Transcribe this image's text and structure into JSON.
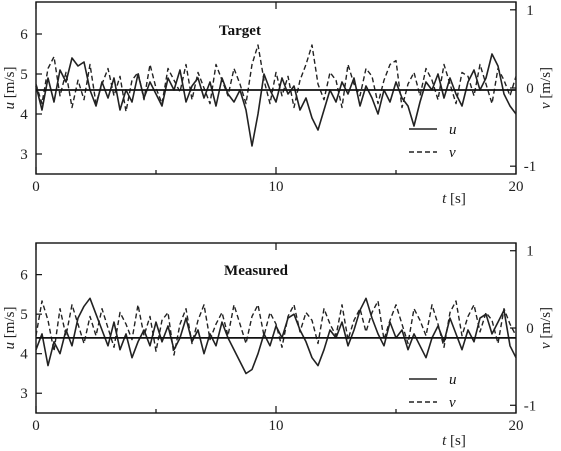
{
  "chart_data": [
    {
      "type": "line",
      "title": "Target",
      "xlabel_var": "t",
      "xlabel_unit": " [s]",
      "ylabel_var": "u",
      "ylabel_unit": " [m/s]",
      "y2label_var": "v",
      "y2label_unit": " [m/s]",
      "xlim": [
        0,
        20
      ],
      "ylim": [
        2.5,
        6.8
      ],
      "y2lim": [
        -1.1,
        1.1
      ],
      "xticks": [
        0,
        10,
        20
      ],
      "yticks": [
        3,
        4,
        5,
        6
      ],
      "y2ticks": [
        -1,
        0,
        1
      ],
      "xtick_labels": [
        "0",
        "10",
        "20"
      ],
      "ytick_labels": [
        "3",
        "4",
        "5",
        "6"
      ],
      "y2tick_labels": [
        "-1",
        "0",
        "1"
      ],
      "reference_line": {
        "axis": "y",
        "value": 4.6
      },
      "legend": {
        "position": "bottom-right",
        "entries": [
          "u",
          "v"
        ]
      },
      "series": [
        {
          "name": "u",
          "style": "solid",
          "axis": "left",
          "x": [
            0,
            0.25,
            0.5,
            0.75,
            1,
            1.25,
            1.5,
            1.75,
            2,
            2.25,
            2.5,
            2.75,
            3,
            3.25,
            3.5,
            3.75,
            4,
            4.25,
            4.5,
            4.75,
            5,
            5.25,
            5.5,
            5.75,
            6,
            6.25,
            6.5,
            6.75,
            7,
            7.25,
            7.5,
            7.75,
            8,
            8.25,
            8.5,
            8.75,
            9,
            9.25,
            9.5,
            9.75,
            10,
            10.25,
            10.5,
            10.75,
            11,
            11.25,
            11.5,
            11.75,
            12,
            12.25,
            12.5,
            12.75,
            13,
            13.25,
            13.5,
            13.75,
            14,
            14.25,
            14.5,
            14.75,
            15,
            15.25,
            15.5,
            15.75,
            16,
            16.25,
            16.5,
            16.75,
            17,
            17.25,
            17.5,
            17.75,
            18,
            18.25,
            18.5,
            18.75,
            19,
            19.25,
            19.5,
            19.75,
            20
          ],
          "values": [
            4.7,
            4.1,
            4.9,
            4.3,
            5.1,
            4.8,
            5.4,
            5.2,
            5.3,
            4.6,
            4.2,
            4.8,
            4.4,
            4.9,
            4.1,
            4.6,
            4.3,
            5.0,
            4.4,
            4.8,
            4.5,
            4.2,
            4.9,
            4.6,
            5.1,
            4.3,
            4.7,
            4.9,
            4.4,
            4.8,
            4.2,
            4.9,
            4.5,
            4.3,
            4.6,
            4.1,
            3.2,
            4.0,
            5.0,
            4.6,
            4.3,
            4.9,
            4.5,
            4.7,
            4.1,
            4.4,
            3.9,
            3.6,
            4.1,
            4.6,
            4.3,
            4.8,
            4.5,
            4.9,
            4.2,
            4.7,
            4.4,
            4.0,
            4.6,
            4.3,
            4.8,
            4.4,
            4.2,
            3.7,
            4.3,
            4.8,
            4.6,
            5.0,
            4.4,
            4.9,
            4.5,
            4.2,
            4.8,
            5.1,
            4.6,
            4.9,
            5.5,
            5.2,
            4.5,
            4.2,
            4.0
          ]
        },
        {
          "name": "v",
          "style": "dashed",
          "axis": "right",
          "x": [
            0,
            0.25,
            0.5,
            0.75,
            1,
            1.25,
            1.5,
            1.75,
            2,
            2.25,
            2.5,
            2.75,
            3,
            3.25,
            3.5,
            3.75,
            4,
            4.25,
            4.5,
            4.75,
            5,
            5.25,
            5.5,
            5.75,
            6,
            6.25,
            6.5,
            6.75,
            7,
            7.25,
            7.5,
            7.75,
            8,
            8.25,
            8.5,
            8.75,
            9,
            9.25,
            9.5,
            9.75,
            10,
            10.25,
            10.5,
            10.75,
            11,
            11.25,
            11.5,
            11.75,
            12,
            12.25,
            12.5,
            12.75,
            13,
            13.25,
            13.5,
            13.75,
            14,
            14.25,
            14.5,
            14.75,
            15,
            15.25,
            15.5,
            15.75,
            16,
            16.25,
            16.5,
            16.75,
            17,
            17.25,
            17.5,
            17.75,
            18,
            18.25,
            18.5,
            18.75,
            19,
            19.25,
            19.5,
            19.75,
            20
          ],
          "values": [
            0.05,
            -0.2,
            0.25,
            0.4,
            -0.1,
            0.2,
            -0.25,
            0.1,
            -0.15,
            0.3,
            -0.2,
            0.05,
            0.25,
            -0.1,
            0.15,
            -0.3,
            0.1,
            0.2,
            -0.15,
            0.3,
            0.0,
            -0.2,
            0.25,
            0.1,
            -0.05,
            0.3,
            -0.15,
            0.2,
            0.0,
            -0.2,
            0.3,
            0.1,
            -0.1,
            0.25,
            0.05,
            -0.2,
            0.3,
            0.55,
            0.1,
            -0.2,
            0.2,
            -0.1,
            0.15,
            -0.25,
            0.1,
            0.3,
            0.55,
            0.05,
            -0.15,
            0.2,
            0.1,
            -0.25,
            0.3,
            0.05,
            -0.1,
            0.25,
            0.15,
            -0.2,
            0.1,
            0.3,
            0.35,
            -0.25,
            0.05,
            0.2,
            -0.1,
            0.25,
            0.1,
            -0.15,
            0.3,
            0.05,
            -0.2,
            0.2,
            0.15,
            -0.1,
            0.3,
            0.05,
            -0.2,
            0.25,
            0.1,
            -0.1,
            0.15
          ]
        }
      ]
    },
    {
      "type": "line",
      "title": "Measured",
      "xlabel_var": "t",
      "xlabel_unit": " [s]",
      "ylabel_var": "u",
      "ylabel_unit": " [m/s]",
      "y2label_var": "v",
      "y2label_unit": " [m/s]",
      "xlim": [
        0,
        20
      ],
      "ylim": [
        2.5,
        6.8
      ],
      "y2lim": [
        -1.1,
        1.1
      ],
      "xticks": [
        0,
        10,
        20
      ],
      "yticks": [
        3,
        4,
        5,
        6
      ],
      "y2ticks": [
        -1,
        0,
        1
      ],
      "xtick_labels": [
        "0",
        "10",
        "20"
      ],
      "ytick_labels": [
        "3",
        "4",
        "5",
        "6"
      ],
      "y2tick_labels": [
        "-1",
        "0",
        "1"
      ],
      "reference_line": {
        "axis": "y",
        "value": 4.4
      },
      "legend": {
        "position": "bottom-right",
        "entries": [
          "u",
          "v"
        ]
      },
      "series": [
        {
          "name": "u",
          "style": "solid",
          "axis": "left",
          "x": [
            0,
            0.25,
            0.5,
            0.75,
            1,
            1.25,
            1.5,
            1.75,
            2,
            2.25,
            2.5,
            2.75,
            3,
            3.25,
            3.5,
            3.75,
            4,
            4.25,
            4.5,
            4.75,
            5,
            5.25,
            5.5,
            5.75,
            6,
            6.25,
            6.5,
            6.75,
            7,
            7.25,
            7.5,
            7.75,
            8,
            8.25,
            8.5,
            8.75,
            9,
            9.25,
            9.5,
            9.75,
            10,
            10.25,
            10.5,
            10.75,
            11,
            11.25,
            11.5,
            11.75,
            12,
            12.25,
            12.5,
            12.75,
            13,
            13.25,
            13.5,
            13.75,
            14,
            14.25,
            14.5,
            14.75,
            15,
            15.25,
            15.5,
            15.75,
            16,
            16.25,
            16.5,
            16.75,
            17,
            17.25,
            17.5,
            17.75,
            18,
            18.25,
            18.5,
            18.75,
            19,
            19.25,
            19.5,
            19.75,
            20
          ],
          "values": [
            4.1,
            4.5,
            3.7,
            4.3,
            4.0,
            4.6,
            4.2,
            4.9,
            5.2,
            5.4,
            5.0,
            4.6,
            4.2,
            4.8,
            4.1,
            4.5,
            3.9,
            4.3,
            4.6,
            4.2,
            4.8,
            4.3,
            4.7,
            4.1,
            4.4,
            4.9,
            4.3,
            4.6,
            4.0,
            4.5,
            4.2,
            4.8,
            4.4,
            4.1,
            3.8,
            3.5,
            3.6,
            4.0,
            4.5,
            4.2,
            4.7,
            4.4,
            4.9,
            5.0,
            4.6,
            4.3,
            3.9,
            3.7,
            4.1,
            4.6,
            4.4,
            4.8,
            4.2,
            4.6,
            5.1,
            5.4,
            4.9,
            4.5,
            4.2,
            4.8,
            4.4,
            4.6,
            4.1,
            4.5,
            4.2,
            3.9,
            4.4,
            4.7,
            4.3,
            4.9,
            4.5,
            4.1,
            4.6,
            4.3,
            4.9,
            5.0,
            4.5,
            4.8,
            5.1,
            4.2,
            3.9
          ]
        },
        {
          "name": "v",
          "style": "dashed",
          "axis": "right",
          "x": [
            0,
            0.25,
            0.5,
            0.75,
            1,
            1.25,
            1.5,
            1.75,
            2,
            2.25,
            2.5,
            2.75,
            3,
            3.25,
            3.5,
            3.75,
            4,
            4.25,
            4.5,
            4.75,
            5,
            5.25,
            5.5,
            5.75,
            6,
            6.25,
            6.5,
            6.75,
            7,
            7.25,
            7.5,
            7.75,
            8,
            8.25,
            8.5,
            8.75,
            9,
            9.25,
            9.5,
            9.75,
            10,
            10.25,
            10.5,
            10.75,
            11,
            11.25,
            11.5,
            11.75,
            12,
            12.25,
            12.5,
            12.75,
            13,
            13.25,
            13.5,
            13.75,
            14,
            14.25,
            14.5,
            14.75,
            15,
            15.25,
            15.5,
            15.75,
            16,
            16.25,
            16.5,
            16.75,
            17,
            17.25,
            17.5,
            17.75,
            18,
            18.25,
            18.5,
            18.75,
            19,
            19.25,
            19.5,
            19.75,
            20
          ],
          "values": [
            -0.1,
            0.35,
            0.1,
            -0.3,
            0.25,
            -0.1,
            0.3,
            0.05,
            -0.2,
            0.15,
            -0.1,
            0.25,
            0.0,
            -0.25,
            0.2,
            0.05,
            -0.15,
            0.3,
            -0.1,
            0.15,
            -0.3,
            0.1,
            0.2,
            -0.35,
            0.05,
            0.25,
            -0.2,
            0.1,
            0.3,
            -0.15,
            0.05,
            0.2,
            -0.1,
            0.3,
            0.05,
            -0.2,
            0.15,
            0.3,
            -0.1,
            0.2,
            0.05,
            -0.25,
            0.15,
            0.3,
            -0.05,
            0.2,
            0.1,
            -0.2,
            0.25,
            0.05,
            -0.1,
            0.3,
            -0.15,
            0.1,
            0.25,
            -0.05,
            0.2,
            0.35,
            -0.15,
            0.1,
            0.3,
            0.05,
            -0.2,
            0.25,
            0.1,
            -0.1,
            0.3,
            0.05,
            -0.25,
            0.2,
            0.35,
            -0.1,
            0.15,
            0.3,
            -0.05,
            0.2,
            0.1,
            -0.2,
            0.25,
            0.05,
            -0.1
          ]
        }
      ]
    }
  ]
}
